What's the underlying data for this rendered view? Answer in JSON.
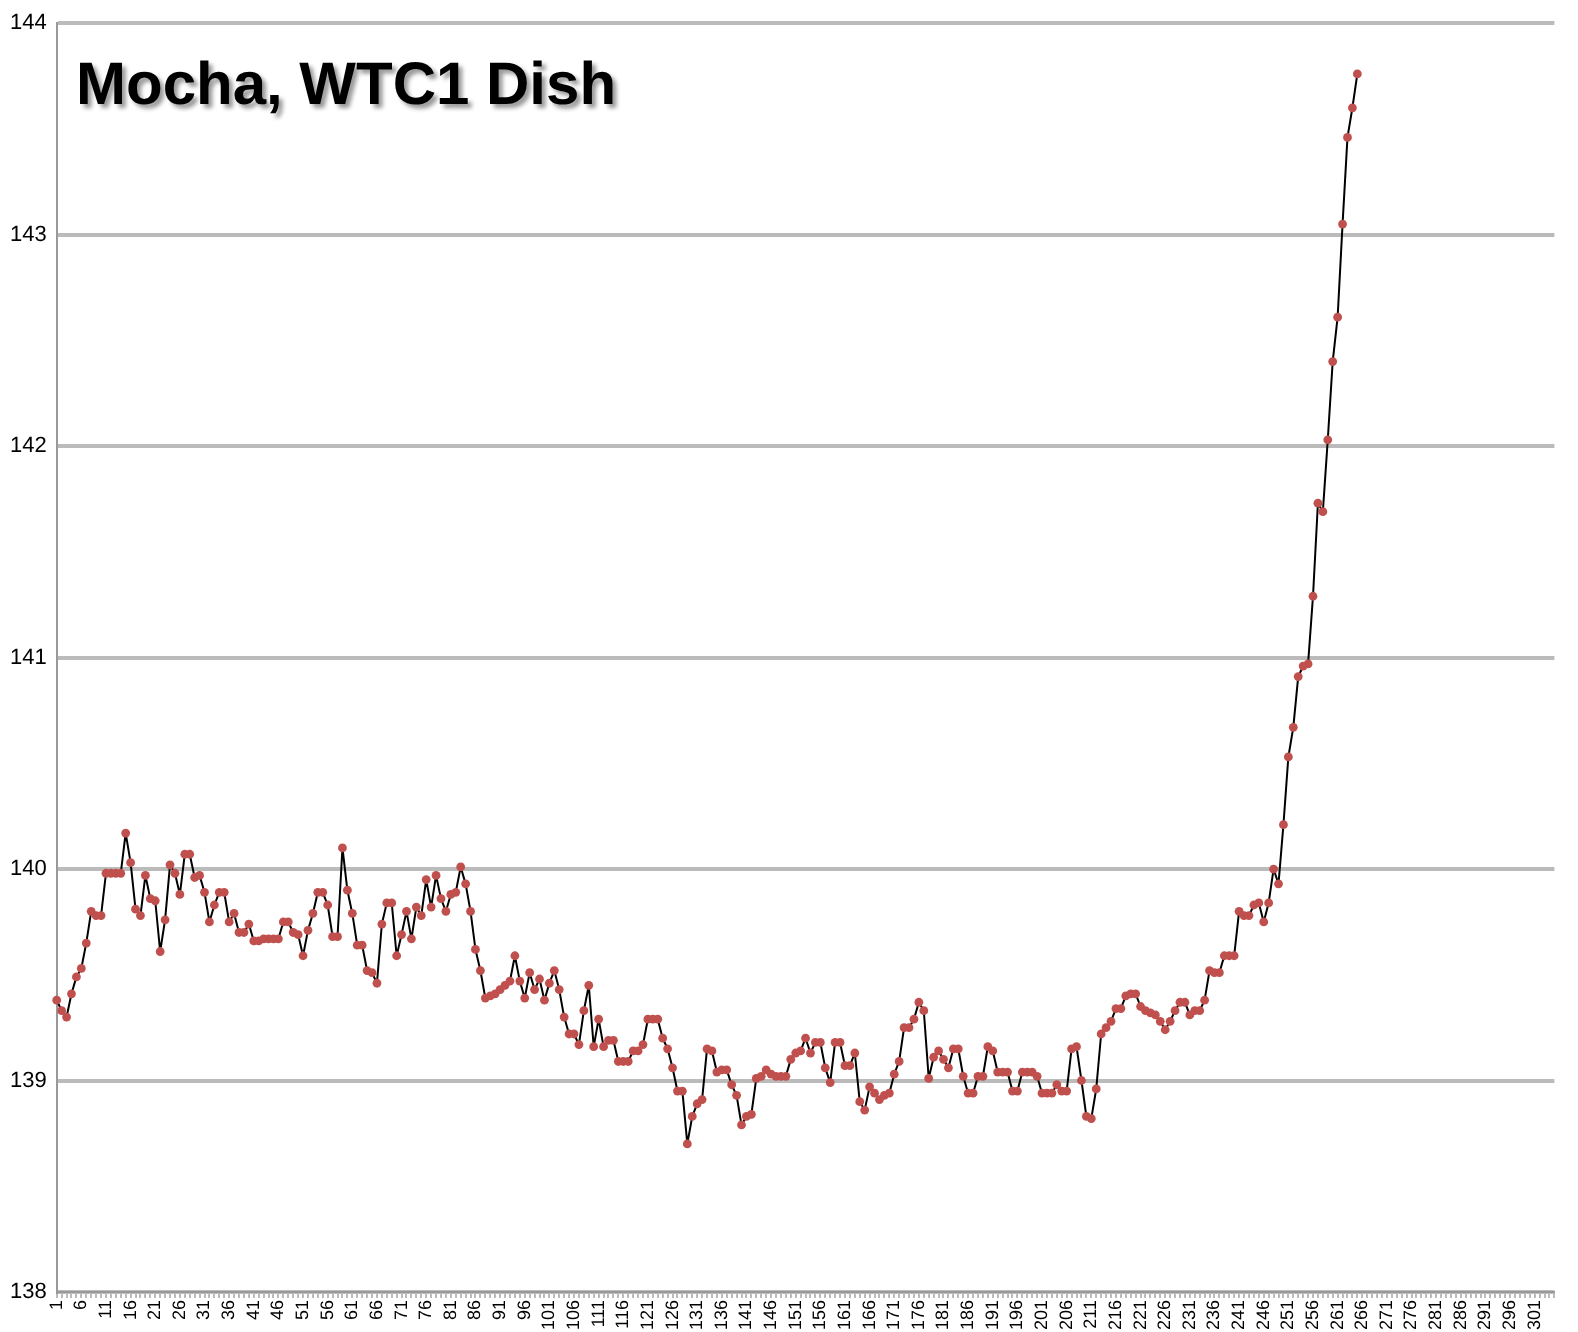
{
  "chart_data": {
    "type": "line",
    "title": "Mocha, WTC1 Dish",
    "categories": [
      "1",
      null,
      null,
      null,
      null,
      "6",
      null,
      null,
      null,
      null,
      "11",
      null,
      null,
      null,
      null,
      "16",
      null,
      null,
      null,
      null,
      "21",
      null,
      null,
      null,
      null,
      "26",
      null,
      null,
      null,
      null,
      "31",
      null,
      null,
      null,
      null,
      "36",
      null,
      null,
      null,
      null,
      "41",
      null,
      null,
      null,
      null,
      "46",
      null,
      null,
      null,
      null,
      "51",
      null,
      null,
      null,
      null,
      "56",
      null,
      null,
      null,
      null,
      "61",
      null,
      null,
      null,
      null,
      "66",
      null,
      null,
      null,
      null,
      "71",
      null,
      null,
      null,
      null,
      "76",
      null,
      null,
      null,
      null,
      "81",
      null,
      null,
      null,
      null,
      "86",
      null,
      null,
      null,
      null,
      "91",
      null,
      null,
      null,
      null,
      "96",
      null,
      null,
      null,
      null,
      "101",
      null,
      null,
      null,
      null,
      "106",
      null,
      null,
      null,
      null,
      "111",
      null,
      null,
      null,
      null,
      "116",
      null,
      null,
      null,
      null,
      "121",
      null,
      null,
      null,
      null,
      "126",
      null,
      null,
      null,
      null,
      "131",
      null,
      null,
      null,
      null,
      "136",
      null,
      null,
      null,
      null,
      "141",
      null,
      null,
      null,
      null,
      "146",
      null,
      null,
      null,
      null,
      "151",
      null,
      null,
      null,
      null,
      "156",
      null,
      null,
      null,
      null,
      "161",
      null,
      null,
      null,
      null,
      "166",
      null,
      null,
      null,
      null,
      "171",
      null,
      null,
      null,
      null,
      "176",
      null,
      null,
      null,
      null,
      "181",
      null,
      null,
      null,
      null,
      "186",
      null,
      null,
      null,
      null,
      "191",
      null,
      null,
      null,
      null,
      "196",
      null,
      null,
      null,
      null,
      "201",
      null,
      null,
      null,
      null,
      "206",
      null,
      null,
      null,
      null,
      "211",
      null,
      null,
      null,
      null,
      "216",
      null,
      null,
      null,
      null,
      "221",
      null,
      null,
      null,
      null,
      "226",
      null,
      null,
      null,
      null,
      "231",
      null,
      null,
      null,
      null,
      "236",
      null,
      null,
      null,
      null,
      "241",
      null,
      null,
      null,
      null,
      "246",
      null,
      null,
      null,
      null,
      "251",
      null,
      null,
      null,
      null,
      "256",
      null,
      null,
      null,
      null,
      "261",
      null,
      null,
      null,
      null,
      "266",
      null,
      null,
      null,
      null,
      "271",
      null,
      null,
      null,
      null,
      "276",
      null,
      null,
      null,
      null,
      "281",
      null,
      null,
      null,
      null,
      "286",
      null,
      null,
      null,
      null,
      "291",
      null,
      null,
      null,
      null,
      "296",
      null,
      null,
      null,
      null,
      "301",
      null,
      null,
      null,
      null
    ],
    "series": [
      {
        "color": "#c0504d",
        "values": [
          139.38,
          139.33,
          139.3,
          139.41,
          139.49,
          139.53,
          139.65,
          139.8,
          139.78,
          139.78,
          139.98,
          139.98,
          139.98,
          139.98,
          140.17,
          140.03,
          139.81,
          139.78,
          139.97,
          139.86,
          139.85,
          139.61,
          139.76,
          140.02,
          139.98,
          139.88,
          140.07,
          140.07,
          139.96,
          139.97,
          139.89,
          139.75,
          139.83,
          139.89,
          139.89,
          139.75,
          139.79,
          139.7,
          139.7,
          139.74,
          139.66,
          139.66,
          139.67,
          139.67,
          139.67,
          139.67,
          139.75,
          139.75,
          139.7,
          139.69,
          139.59,
          139.71,
          139.79,
          139.89,
          139.89,
          139.83,
          139.68,
          139.68,
          140.1,
          139.9,
          139.79,
          139.64,
          139.64,
          139.52,
          139.51,
          139.46,
          139.74,
          139.84,
          139.84,
          139.59,
          139.69,
          139.8,
          139.67,
          139.82,
          139.78,
          139.95,
          139.82,
          139.97,
          139.86,
          139.8,
          139.88,
          139.89,
          140.01,
          139.93,
          139.8,
          139.62,
          139.52,
          139.39,
          139.4,
          139.41,
          139.43,
          139.45,
          139.47,
          139.59,
          139.47,
          139.39,
          139.51,
          139.43,
          139.48,
          139.38,
          139.46,
          139.52,
          139.43,
          139.3,
          139.22,
          139.22,
          139.17,
          139.33,
          139.45,
          139.16,
          139.29,
          139.16,
          139.19,
          139.19,
          139.09,
          139.09,
          139.09,
          139.14,
          139.14,
          139.17,
          139.29,
          139.29,
          139.29,
          139.2,
          139.15,
          139.06,
          138.95,
          138.95,
          138.7,
          138.83,
          138.89,
          138.91,
          139.15,
          139.14,
          139.04,
          139.05,
          139.05,
          138.98,
          138.93,
          138.79,
          138.83,
          138.84,
          139.01,
          139.02,
          139.05,
          139.03,
          139.02,
          139.02,
          139.02,
          139.1,
          139.13,
          139.14,
          139.2,
          139.13,
          139.18,
          139.18,
          139.06,
          138.99,
          139.18,
          139.18,
          139.07,
          139.07,
          139.13,
          138.9,
          138.86,
          138.97,
          138.94,
          138.91,
          138.93,
          138.94,
          139.03,
          139.09,
          139.25,
          139.25,
          139.29,
          139.37,
          139.33,
          139.01,
          139.11,
          139.14,
          139.1,
          139.06,
          139.15,
          139.15,
          139.02,
          138.94,
          138.94,
          139.02,
          139.02,
          139.16,
          139.14,
          139.04,
          139.04,
          139.04,
          138.95,
          138.95,
          139.04,
          139.04,
          139.04,
          139.02,
          138.94,
          138.94,
          138.94,
          138.98,
          138.95,
          138.95,
          139.15,
          139.16,
          139.0,
          138.83,
          138.82,
          138.96,
          139.22,
          139.25,
          139.28,
          139.34,
          139.34,
          139.4,
          139.41,
          139.41,
          139.35,
          139.33,
          139.32,
          139.31,
          139.28,
          139.24,
          139.28,
          139.33,
          139.37,
          139.37,
          139.31,
          139.33,
          139.33,
          139.38,
          139.52,
          139.51,
          139.51,
          139.59,
          139.59,
          139.59,
          139.8,
          139.78,
          139.78,
          139.83,
          139.84,
          139.75,
          139.84,
          140.0,
          139.93,
          140.21,
          140.53,
          140.67,
          140.91,
          140.96,
          140.97,
          141.29,
          141.73,
          141.69,
          142.03,
          142.4,
          142.61,
          143.05,
          143.46,
          143.6,
          143.76,
          null,
          null,
          null,
          null,
          null,
          null,
          null,
          null,
          null,
          null,
          null,
          null,
          null,
          null,
          null,
          null,
          null,
          null,
          null,
          null,
          null,
          null,
          null,
          null,
          null,
          null,
          null,
          null,
          null,
          null,
          null,
          null,
          null,
          null,
          null,
          null,
          null,
          null,
          null,
          null
        ]
      }
    ],
    "ylim": [
      138,
      144
    ],
    "yticks": [
      138,
      139,
      140,
      141,
      142,
      143,
      144
    ],
    "grid": "y",
    "legend": false,
    "marker": "circle",
    "line_style": "solid"
  }
}
